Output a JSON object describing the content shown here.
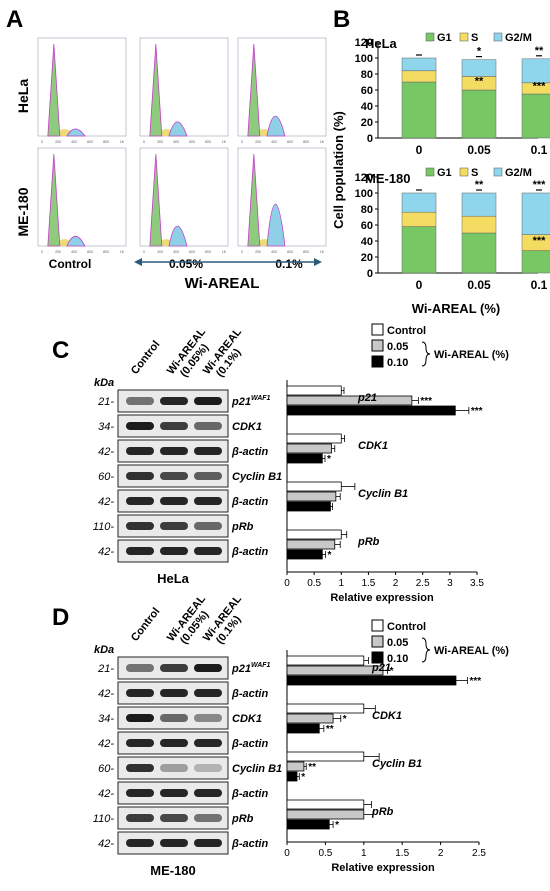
{
  "panel_a": {
    "letter": "A",
    "rows": [
      "HeLa",
      "ME-180"
    ],
    "ticks": [
      "0",
      "200",
      "400",
      "600",
      "800",
      "1K"
    ],
    "control_label": "Control",
    "dose_labels": [
      "0.05%",
      "0.1%"
    ],
    "treatment_label": "Wi-AREAL"
  },
  "panel_b": {
    "letter": "B",
    "ylabel": "Cell population (%)",
    "xlabel": "Wi-AREAL (%)",
    "legend": [
      "G1",
      "S",
      "G2/M"
    ],
    "colors": {
      "G1": "#77c864",
      "S": "#f4dc62",
      "G2M": "#8fd5ec"
    }
  },
  "panel_c": {
    "letter": "C",
    "cell_line": "HeLa",
    "kda": "kDa",
    "lane_labels": [
      "Control",
      "Wi-AREAL (0.05%)",
      "Wi-AREAL (0.1%)"
    ],
    "blots": [
      {
        "mw": "21-",
        "label": "p21",
        "sup": "WAF1"
      },
      {
        "mw": "34-",
        "label": "CDK1",
        "sup": ""
      },
      {
        "mw": "42-",
        "label": "β-actin",
        "sup": ""
      },
      {
        "mw": "60-",
        "label": "Cyclin B1",
        "sup": ""
      },
      {
        "mw": "42-",
        "label": "β-actin",
        "sup": ""
      },
      {
        "mw": "110-",
        "label": "pRb",
        "sup": ""
      },
      {
        "mw": "42-",
        "label": "β-actin",
        "sup": ""
      }
    ]
  },
  "panel_d": {
    "letter": "D",
    "cell_line": "ME-180",
    "kda": "kDa",
    "lane_labels": [
      "Control",
      "Wi-AREAL (0.05%)",
      "Wi-AREAL (0.1%)"
    ],
    "blots": [
      {
        "mw": "21-",
        "label": "p21",
        "sup": "WAF1"
      },
      {
        "mw": "42-",
        "label": "β-actin",
        "sup": ""
      },
      {
        "mw": "34-",
        "label": "CDK1",
        "sup": ""
      },
      {
        "mw": "42-",
        "label": "β-actin",
        "sup": ""
      },
      {
        "mw": "60-",
        "label": "Cyclin B1",
        "sup": ""
      },
      {
        "mw": "42-",
        "label": "β-actin",
        "sup": ""
      },
      {
        "mw": "110-",
        "label": "pRb",
        "sup": ""
      },
      {
        "mw": "42-",
        "label": "β-actin",
        "sup": ""
      }
    ]
  },
  "chart_data": [
    {
      "type": "bar",
      "stacked": true,
      "title": "HeLa",
      "categories": [
        "0",
        "0.05",
        "0.1"
      ],
      "series": [
        {
          "name": "G1",
          "values": [
            70,
            60,
            55
          ]
        },
        {
          "name": "S",
          "values": [
            14,
            17,
            14
          ]
        },
        {
          "name": "G2/M",
          "values": [
            16,
            21,
            30
          ]
        }
      ],
      "ylabel": "Cell population (%)",
      "ylim": [
        0,
        120
      ],
      "yticks": [
        "0",
        "20",
        "40",
        "60",
        "80",
        "100",
        "120"
      ],
      "annotations": [
        [
          "",
          "*",
          "**"
        ],
        [
          "",
          "**",
          "***"
        ]
      ]
    },
    {
      "type": "bar",
      "stacked": true,
      "title": "ME-180",
      "categories": [
        "0",
        "0.05",
        "0.1"
      ],
      "series": [
        {
          "name": "G1",
          "values": [
            58,
            50,
            28
          ]
        },
        {
          "name": "S",
          "values": [
            18,
            21,
            20
          ]
        },
        {
          "name": "G2/M",
          "values": [
            24,
            29,
            52
          ]
        }
      ],
      "xlabel": "Wi-AREAL (%)",
      "ylim": [
        0,
        120
      ],
      "yticks": [
        "0",
        "20",
        "40",
        "60",
        "80",
        "100",
        "120"
      ],
      "annotations": [
        [
          "",
          "**",
          "***"
        ],
        [
          "",
          "",
          "***"
        ]
      ]
    },
    {
      "type": "bar",
      "orientation": "horizontal",
      "cell_line": "HeLa",
      "legend_title": "Wi-AREAL (%)",
      "series_names": [
        "Control",
        "0.05",
        "0.10"
      ],
      "groups": [
        {
          "label": "p21",
          "values": [
            1.0,
            2.3,
            3.1
          ],
          "errors": [
            0.05,
            0.12,
            0.25
          ],
          "stars": [
            "",
            "***",
            "***"
          ]
        },
        {
          "label": "CDK1",
          "values": [
            1.0,
            0.82,
            0.65
          ],
          "errors": [
            0.06,
            0.06,
            0.05
          ],
          "stars": [
            "",
            "",
            "*"
          ]
        },
        {
          "label": "Cyclin B1",
          "values": [
            1.0,
            0.9,
            0.8
          ],
          "errors": [
            0.25,
            0.08,
            0.04
          ],
          "stars": [
            "",
            "",
            ""
          ]
        },
        {
          "label": "pRb",
          "values": [
            1.0,
            0.88,
            0.65
          ],
          "errors": [
            0.1,
            0.1,
            0.06
          ],
          "stars": [
            "",
            "",
            "*"
          ]
        }
      ],
      "xlabel": "Relative expression",
      "xlim": [
        0,
        3.5
      ],
      "xticks": [
        "0",
        "0.5",
        "1",
        "1.5",
        "2",
        "2.5",
        "3",
        "3.5"
      ]
    },
    {
      "type": "bar",
      "orientation": "horizontal",
      "cell_line": "ME-180",
      "legend_title": "Wi-AREAL (%)",
      "series_names": [
        "Control",
        "0.05",
        "0.10"
      ],
      "groups": [
        {
          "label": "p21",
          "values": [
            1.0,
            1.25,
            2.2
          ],
          "errors": [
            0.06,
            0.06,
            0.15
          ],
          "stars": [
            "",
            "*",
            "***"
          ]
        },
        {
          "label": "CDK1",
          "values": [
            1.0,
            0.6,
            0.42
          ],
          "errors": [
            0.15,
            0.1,
            0.06
          ],
          "stars": [
            "",
            "*",
            "**"
          ]
        },
        {
          "label": "Cyclin B1",
          "values": [
            1.0,
            0.22,
            0.13
          ],
          "errors": [
            0.2,
            0.03,
            0.03
          ],
          "stars": [
            "",
            "**",
            "*"
          ]
        },
        {
          "label": "pRb",
          "values": [
            1.0,
            1.0,
            0.55
          ],
          "errors": [
            0.1,
            0.12,
            0.05
          ],
          "stars": [
            "",
            "",
            "*"
          ]
        }
      ],
      "xlabel": "Relative expression",
      "xlim": [
        0,
        2.5
      ],
      "xticks": [
        "0",
        "0.5",
        "1",
        "1.5",
        "2",
        "2.5"
      ]
    }
  ]
}
